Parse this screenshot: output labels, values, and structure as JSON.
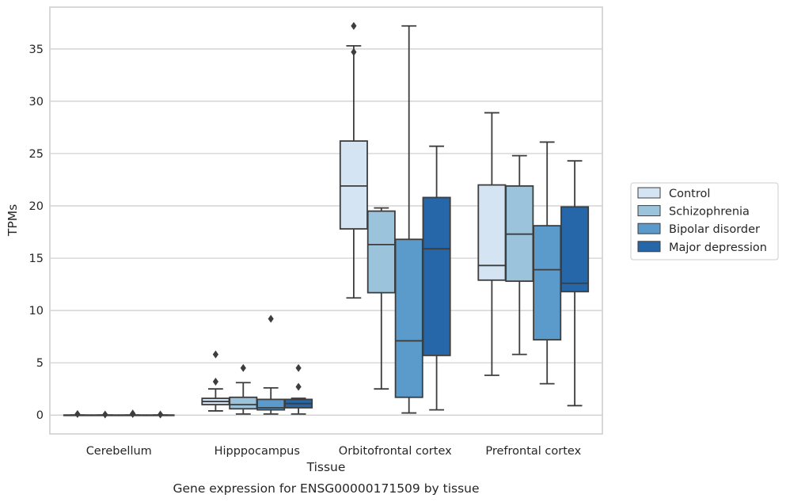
{
  "caption": "Gene expression for ENSG00000171509 by tissue",
  "chart_data": {
    "type": "boxplot",
    "xlabel": "Tissue",
    "ylabel": "TPMs",
    "ylim": [
      -1.8,
      39
    ],
    "yticks": [
      0,
      5,
      10,
      15,
      20,
      25,
      30,
      35
    ],
    "grid": "horizontal",
    "legend_position": "right",
    "categories": [
      "Cerebellum",
      "Hipppocampus",
      "Orbitofrontal cortex",
      "Prefrontal cortex"
    ],
    "series": [
      {
        "name": "Control",
        "color": "#d4e4f2",
        "boxes": [
          {
            "whisker_low": 0,
            "q1": 0,
            "median": 0,
            "q3": 0,
            "whisker_high": 0,
            "outliers": [
              0.1
            ]
          },
          {
            "whisker_low": 0.4,
            "q1": 1.0,
            "median": 1.3,
            "q3": 1.6,
            "whisker_high": 2.5,
            "outliers": [
              3.2,
              5.8
            ]
          },
          {
            "whisker_low": 11.2,
            "q1": 17.8,
            "median": 21.9,
            "q3": 26.2,
            "whisker_high": 35.3,
            "outliers": [
              34.7,
              37.2
            ]
          },
          {
            "whisker_low": 3.8,
            "q1": 12.9,
            "median": 14.3,
            "q3": 22.0,
            "whisker_high": 28.9,
            "outliers": []
          }
        ]
      },
      {
        "name": "Schizophrenia",
        "color": "#9cc3dc",
        "boxes": [
          {
            "whisker_low": 0,
            "q1": 0,
            "median": 0,
            "q3": 0,
            "whisker_high": 0,
            "outliers": [
              0.05
            ]
          },
          {
            "whisker_low": 0.1,
            "q1": 0.6,
            "median": 1.0,
            "q3": 1.7,
            "whisker_high": 3.1,
            "outliers": [
              4.5
            ]
          },
          {
            "whisker_low": 2.5,
            "q1": 11.7,
            "median": 16.3,
            "q3": 19.5,
            "whisker_high": 19.8,
            "outliers": []
          },
          {
            "whisker_low": 5.8,
            "q1": 12.8,
            "median": 17.3,
            "q3": 21.9,
            "whisker_high": 24.8,
            "outliers": []
          }
        ]
      },
      {
        "name": "Bipolar disorder",
        "color": "#5a9bcb",
        "boxes": [
          {
            "whisker_low": 0,
            "q1": 0,
            "median": 0,
            "q3": 0,
            "whisker_high": 0,
            "outliers": [
              0.1,
              0.15
            ]
          },
          {
            "whisker_low": 0.1,
            "q1": 0.5,
            "median": 0.7,
            "q3": 1.5,
            "whisker_high": 2.6,
            "outliers": [
              9.2
            ]
          },
          {
            "whisker_low": 0.2,
            "q1": 1.7,
            "median": 7.1,
            "q3": 16.8,
            "whisker_high": 37.2,
            "outliers": []
          },
          {
            "whisker_low": 3.0,
            "q1": 7.2,
            "median": 13.9,
            "q3": 18.1,
            "whisker_high": 26.1,
            "outliers": []
          }
        ]
      },
      {
        "name": "Major depression",
        "color": "#2567a9",
        "boxes": [
          {
            "whisker_low": 0,
            "q1": 0,
            "median": 0,
            "q3": 0,
            "whisker_high": 0,
            "outliers": [
              0.05
            ]
          },
          {
            "whisker_low": 0.1,
            "q1": 0.7,
            "median": 1.1,
            "q3": 1.5,
            "whisker_high": 1.6,
            "outliers": [
              2.7,
              4.5
            ]
          },
          {
            "whisker_low": 0.5,
            "q1": 5.7,
            "median": 15.9,
            "q3": 20.8,
            "whisker_high": 25.7,
            "outliers": []
          },
          {
            "whisker_low": 0.9,
            "q1": 11.8,
            "median": 12.6,
            "q3": 19.9,
            "whisker_high": 24.3,
            "outliers": []
          }
        ]
      }
    ]
  }
}
